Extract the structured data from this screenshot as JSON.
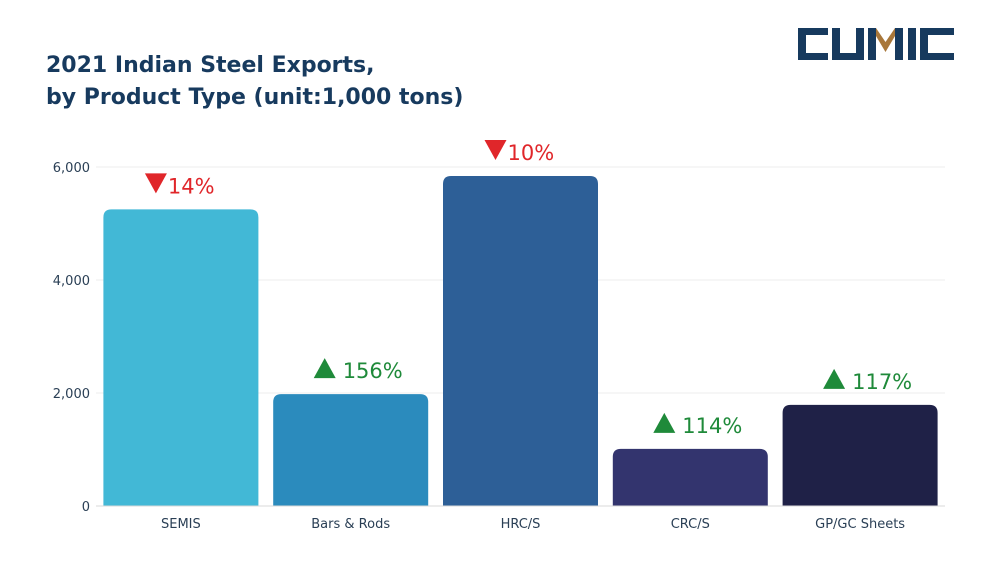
{
  "chart_data": {
    "type": "bar",
    "title_line1": "2021 Indian Steel Exports,",
    "title_line2": "by Product Type (unit:1,000 tons)",
    "categories": [
      "SEMIS",
      "Bars & Rods",
      "HRC/S",
      "CRC/S",
      "GP/GC Sheets"
    ],
    "values": [
      5250,
      1980,
      5840,
      1010,
      1790
    ],
    "colors": [
      "#42b8d6",
      "#2b8bbd",
      "#2d5f97",
      "#33346e",
      "#1f2147"
    ],
    "annotations": [
      {
        "text": "14%",
        "direction": "down",
        "color": "#e0262a"
      },
      {
        "text": "156%",
        "direction": "up",
        "color": "#1f8a3a"
      },
      {
        "text": "10%",
        "direction": "down",
        "color": "#e0262a"
      },
      {
        "text": "114%",
        "direction": "up",
        "color": "#1f8a3a"
      },
      {
        "text": "117%",
        "direction": "up",
        "color": "#1f8a3a"
      }
    ],
    "yticks": [
      "0",
      "2,000",
      "4,000",
      "6,000"
    ],
    "ytick_values": [
      0,
      2000,
      4000,
      6000
    ],
    "ylim": [
      0,
      6000
    ],
    "xlabel": "",
    "ylabel": "",
    "grid": true
  },
  "logo": {
    "text": "CUMIC",
    "color": "#173a5e",
    "accent": "#a8773a"
  }
}
